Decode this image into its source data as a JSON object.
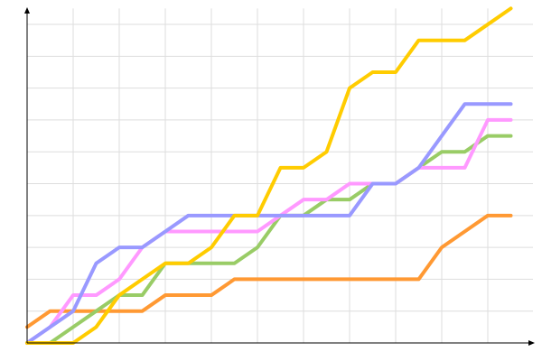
{
  "chart_data": {
    "type": "line",
    "x": [
      0,
      1,
      2,
      3,
      4,
      5,
      6,
      7,
      8,
      9,
      10,
      11,
      12,
      13,
      14,
      15,
      16,
      17,
      18,
      19,
      20,
      21
    ],
    "xlim": [
      0,
      22
    ],
    "ylim": [
      0,
      10.5
    ],
    "xticks": [
      2,
      4,
      6,
      8,
      10,
      12,
      14,
      16,
      18,
      20
    ],
    "yticks": [
      1,
      2,
      3,
      4,
      5,
      6,
      7,
      8,
      9,
      10
    ],
    "grid": true,
    "series": [
      {
        "color": "#ff9933",
        "values": [
          0.5,
          1,
          1,
          1,
          1,
          1,
          1.5,
          1.5,
          1.5,
          2,
          2,
          2,
          2,
          2,
          2,
          2,
          2,
          2,
          3,
          3.5,
          4,
          4
        ]
      },
      {
        "color": "#99cc66",
        "values": [
          0,
          0,
          0.5,
          1,
          1.5,
          1.5,
          2.5,
          2.5,
          2.5,
          2.5,
          3,
          4,
          4,
          4.5,
          4.5,
          5,
          5,
          5.5,
          6,
          6,
          6.5,
          6.5
        ]
      },
      {
        "color": "#ff99ff",
        "values": [
          0,
          0.5,
          1.5,
          1.5,
          2,
          3,
          3.5,
          3.5,
          3.5,
          3.5,
          3.5,
          4,
          4.5,
          4.5,
          5,
          5,
          5,
          5.5,
          5.5,
          5.5,
          7,
          7
        ]
      },
      {
        "color": "#9999ff",
        "values": [
          0,
          0.5,
          1,
          2.5,
          3,
          3,
          3.5,
          4,
          4,
          4,
          4,
          4,
          4,
          4,
          4,
          5,
          5,
          5.5,
          6.5,
          7.5,
          7.5,
          7.5
        ]
      },
      {
        "color": "#ffcc00",
        "values": [
          0,
          0,
          0,
          0.5,
          1.5,
          2,
          2.5,
          2.5,
          3,
          4,
          4,
          5.5,
          5.5,
          6,
          8,
          8.5,
          8.5,
          9.5,
          9.5,
          9.5,
          10,
          10.5
        ]
      }
    ]
  }
}
